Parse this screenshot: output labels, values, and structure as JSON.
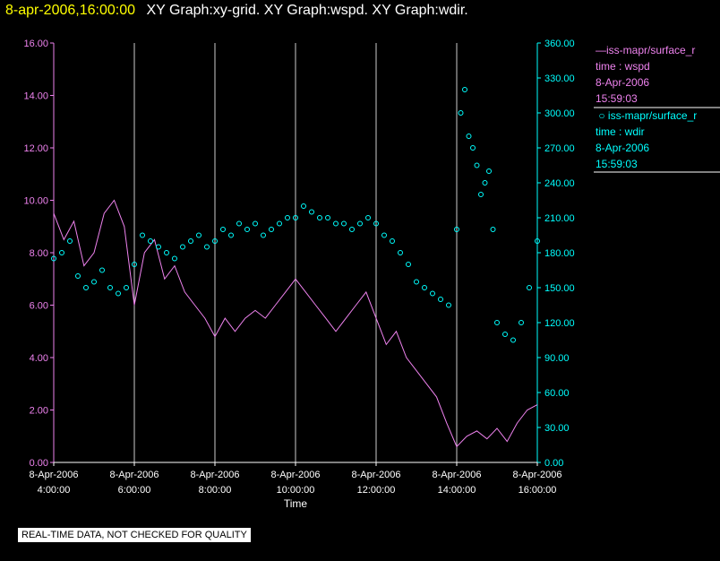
{
  "header": {
    "datetime": "8-apr-2006,16:00:00",
    "title": "XY Graph:xy-grid.  XY Graph:wspd.  XY Graph:wdir."
  },
  "legend": [
    {
      "name": "iss-mapr/surface_r",
      "line1": "time : wspd",
      "line2": "8-Apr-2006",
      "line3": "15:59:03",
      "color": "#ee82ee",
      "marker": "line"
    },
    {
      "name": "iss-mapr/surface_r",
      "line1": "time : wdir",
      "line2": "8-Apr-2006",
      "line3": "15:59:03",
      "color": "#00ffff",
      "marker": "circle"
    }
  ],
  "disclaimer": "REAL-TIME DATA, NOT CHECKED FOR QUALITY",
  "chart_data": {
    "type": "line",
    "xlabel": "Time",
    "x_ticks": [
      {
        "date": "8-Apr-2006",
        "time": "4:00:00"
      },
      {
        "date": "8-Apr-2006",
        "time": "6:00:00"
      },
      {
        "date": "8-Apr-2006",
        "time": "8:00:00"
      },
      {
        "date": "8-Apr-2006",
        "time": "10:00:00"
      },
      {
        "date": "8-Apr-2006",
        "time": "12:00:00"
      },
      {
        "date": "8-Apr-2006",
        "time": "14:00:00"
      },
      {
        "date": "8-Apr-2006",
        "time": "16:00:00"
      }
    ],
    "xlim": [
      4.0,
      16.0
    ],
    "grid": true,
    "y_left": {
      "ylim": [
        0,
        16
      ],
      "ticks": [
        "0.00",
        "2.00",
        "4.00",
        "6.00",
        "8.00",
        "10.00",
        "12.00",
        "14.00",
        "16.00"
      ],
      "color": "#ee82ee"
    },
    "y_right": {
      "ylim": [
        0,
        360
      ],
      "ticks": [
        "0.00",
        "30.00",
        "60.00",
        "90.00",
        "120.00",
        "150.00",
        "180.00",
        "210.00",
        "240.00",
        "270.00",
        "300.00",
        "330.00",
        "360.00"
      ],
      "color": "#00ffff"
    },
    "series": [
      {
        "label": "wspd",
        "axis": "left",
        "style": "line",
        "color": "#ee82ee",
        "x": [
          4.0,
          4.25,
          4.5,
          4.75,
          5.0,
          5.25,
          5.5,
          5.75,
          6.0,
          6.25,
          6.5,
          6.75,
          7.0,
          7.25,
          7.5,
          7.75,
          8.0,
          8.25,
          8.5,
          8.75,
          9.0,
          9.25,
          9.5,
          9.75,
          10.0,
          10.25,
          10.5,
          10.75,
          11.0,
          11.25,
          11.5,
          11.75,
          12.0,
          12.25,
          12.5,
          12.75,
          13.0,
          13.25,
          13.5,
          13.75,
          14.0,
          14.25,
          14.5,
          14.75,
          15.0,
          15.25,
          15.5,
          15.75,
          16.0
        ],
        "y": [
          9.5,
          8.5,
          9.2,
          7.5,
          8.0,
          9.5,
          10.0,
          9.0,
          6.0,
          8.0,
          8.5,
          7.0,
          7.5,
          6.5,
          6.0,
          5.5,
          4.8,
          5.5,
          5.0,
          5.5,
          5.8,
          5.5,
          6.0,
          6.5,
          7.0,
          6.5,
          6.0,
          5.5,
          5.0,
          5.5,
          6.0,
          6.5,
          5.5,
          4.5,
          5.0,
          4.0,
          3.5,
          3.0,
          2.5,
          1.5,
          0.6,
          1.0,
          1.2,
          0.9,
          1.3,
          0.8,
          1.5,
          2.0,
          2.2
        ]
      },
      {
        "label": "wdir",
        "axis": "right",
        "style": "points",
        "color": "#00ffff",
        "x": [
          4.0,
          4.2,
          4.4,
          4.6,
          4.8,
          5.0,
          5.2,
          5.4,
          5.6,
          5.8,
          6.0,
          6.2,
          6.4,
          6.6,
          6.8,
          7.0,
          7.2,
          7.4,
          7.6,
          7.8,
          8.0,
          8.2,
          8.4,
          8.6,
          8.8,
          9.0,
          9.2,
          9.4,
          9.6,
          9.8,
          10.0,
          10.2,
          10.4,
          10.6,
          10.8,
          11.0,
          11.2,
          11.4,
          11.6,
          11.8,
          12.0,
          12.2,
          12.4,
          12.6,
          12.8,
          13.0,
          13.2,
          13.4,
          13.6,
          13.8,
          14.0,
          14.1,
          14.2,
          14.3,
          14.4,
          14.5,
          14.6,
          14.7,
          14.8,
          14.9,
          15.0,
          15.2,
          15.4,
          15.6,
          15.8,
          16.0
        ],
        "y": [
          175,
          180,
          190,
          160,
          150,
          155,
          165,
          150,
          145,
          150,
          170,
          195,
          190,
          185,
          180,
          175,
          185,
          190,
          195,
          185,
          190,
          200,
          195,
          205,
          200,
          205,
          195,
          200,
          205,
          210,
          210,
          220,
          215,
          210,
          210,
          205,
          205,
          200,
          205,
          210,
          205,
          195,
          190,
          180,
          170,
          155,
          150,
          145,
          140,
          135,
          200,
          300,
          320,
          280,
          270,
          255,
          230,
          240,
          250,
          200,
          120,
          110,
          105,
          120,
          150,
          190
        ]
      }
    ]
  }
}
